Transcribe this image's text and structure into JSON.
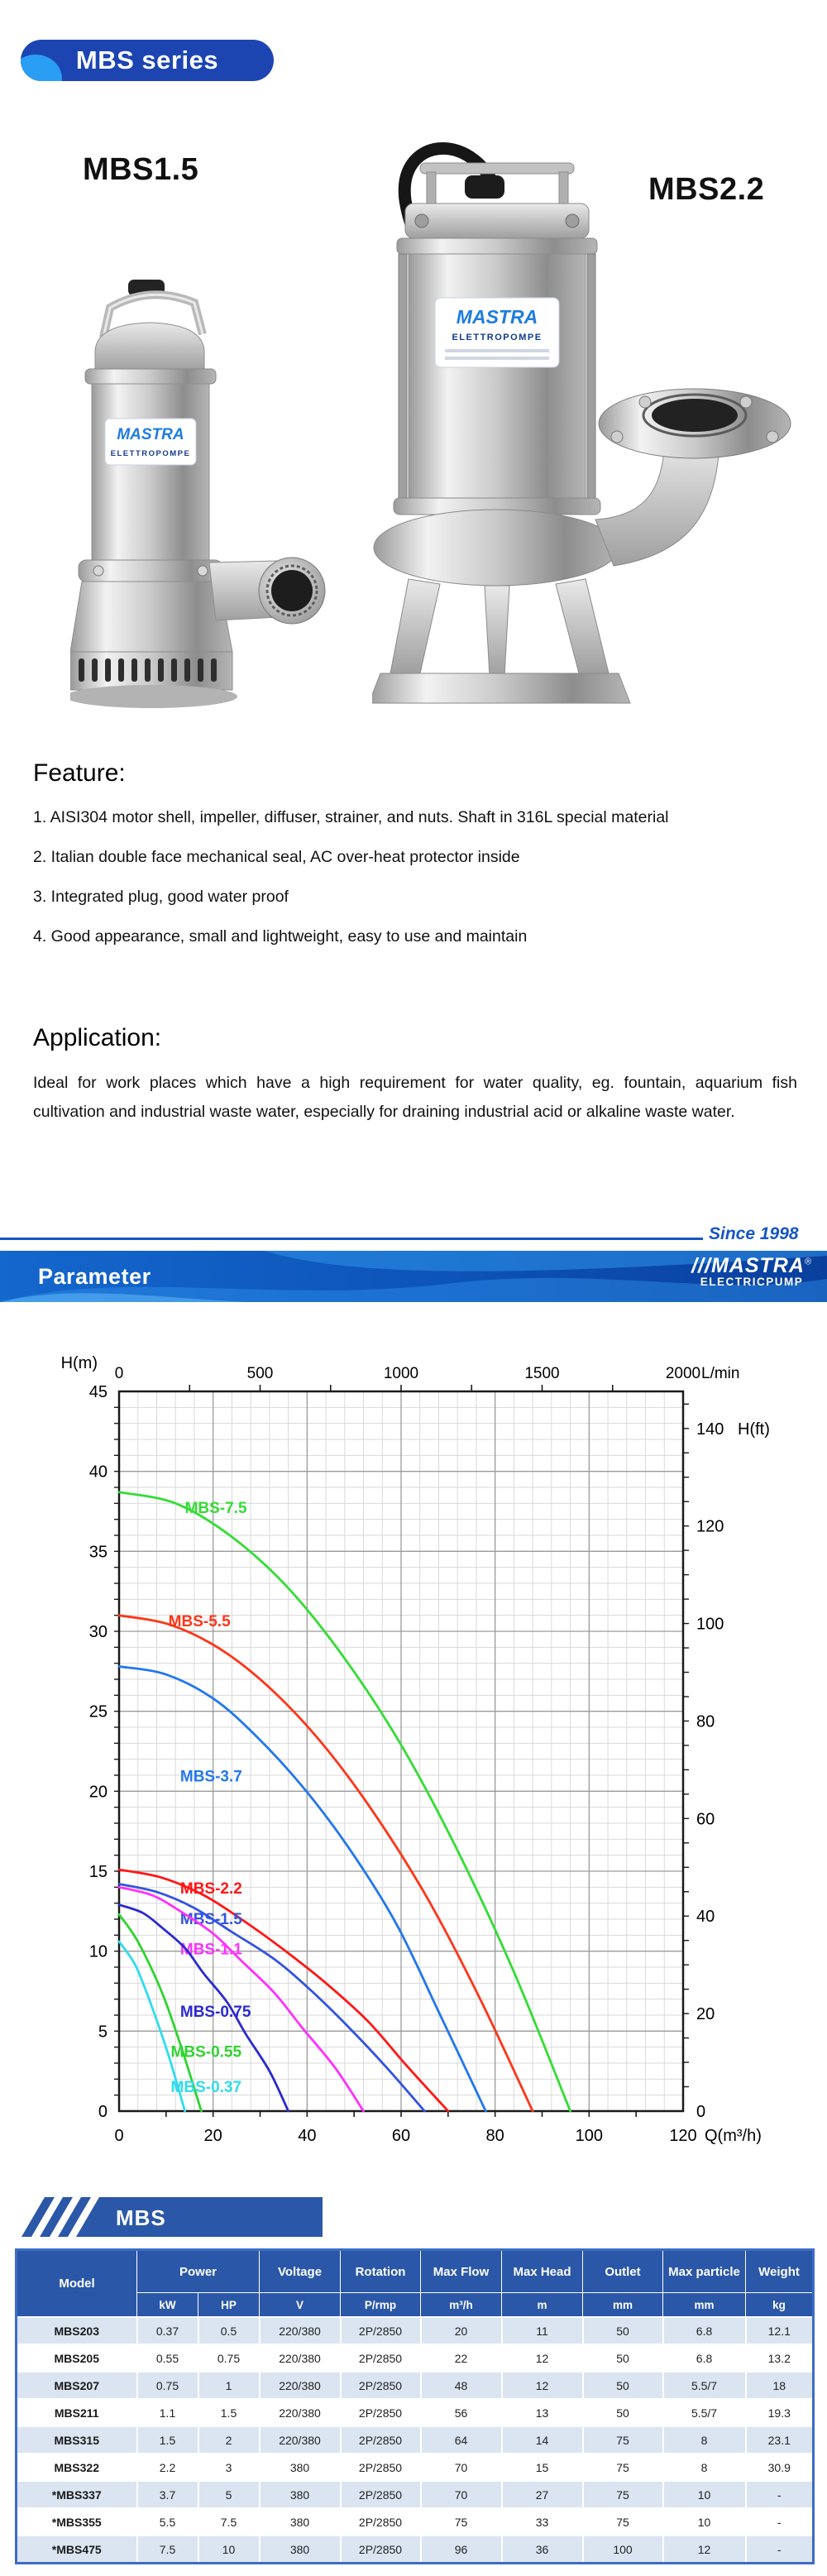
{
  "header_badge": {
    "label": "MBS series",
    "bg": "#1c45b2",
    "accent": "#2a9df4"
  },
  "products": {
    "left_label": "MBS1.5",
    "right_label": "MBS2.2"
  },
  "pump_plate": {
    "brand": "MASTRA",
    "sub": "ELETTROPOMPE"
  },
  "feature": {
    "heading": "Feature:",
    "items": [
      "1. AISI304 motor shell, impeller, diffuser, strainer, and nuts. Shaft in 316L special material",
      "2. Italian double face mechanical seal, AC over-heat protector inside",
      "3. Integrated plug, good water proof",
      "4. Good appearance, small and lightweight, easy to use and maintain"
    ]
  },
  "application": {
    "heading": "Application:",
    "paragraph": "Ideal for work places which have a high requirement for water quality, eg. fountain, aquarium fish cultivation and industrial waste water, especially for draining industrial acid or alkaline waste water."
  },
  "divider": {
    "since": "Since 1998",
    "color": "#1656c4"
  },
  "param_banner": {
    "title": "Parameter",
    "logo_slashes": "///",
    "logo_main": "MASTRA",
    "reg": "®",
    "logo_sub": "ELECTRICPUMP"
  },
  "chart_data": {
    "type": "line",
    "title": "",
    "grid": true,
    "x_axis_top": {
      "label": "L/min",
      "min": 0,
      "max": 2000,
      "ticks": [
        0,
        500,
        1000,
        1500,
        2000
      ]
    },
    "x_axis_bottom": {
      "label": "Q(m³/h)",
      "min": 0,
      "max": 120,
      "ticks": [
        0,
        20,
        40,
        60,
        80,
        100,
        120
      ]
    },
    "y_axis_left": {
      "label": "H(m)",
      "min": 0,
      "max": 45,
      "ticks": [
        0,
        5,
        10,
        15,
        20,
        25,
        30,
        35,
        40,
        45
      ]
    },
    "y_axis_right": {
      "label": "H(ft)",
      "min": 0,
      "max": 147.6,
      "ticks": [
        0,
        20,
        40,
        60,
        80,
        100,
        120,
        140
      ]
    },
    "series": [
      {
        "name": "MBS-7.5",
        "color": "#33dd33",
        "label_pos": [
          14,
          37.4
        ],
        "points": [
          [
            0,
            38.7
          ],
          [
            12,
            38.0
          ],
          [
            24,
            35.9
          ],
          [
            36,
            32.7
          ],
          [
            48,
            28.3
          ],
          [
            60,
            22.9
          ],
          [
            72,
            16.3
          ],
          [
            84,
            8.7
          ],
          [
            96,
            0
          ]
        ]
      },
      {
        "name": "MBS-5.5",
        "color": "#ff3518",
        "label_pos": [
          10.5,
          30.3
        ],
        "points": [
          [
            0,
            31
          ],
          [
            11,
            30.4
          ],
          [
            22,
            28.8
          ],
          [
            33,
            26.2
          ],
          [
            44,
            22.7
          ],
          [
            55,
            18.3
          ],
          [
            66,
            13.1
          ],
          [
            77,
            6.9
          ],
          [
            88,
            0
          ]
        ]
      },
      {
        "name": "MBS-3.7",
        "color": "#2277ee",
        "label_pos": [
          13,
          20.6
        ],
        "points": [
          [
            0,
            27.8
          ],
          [
            10,
            27.3
          ],
          [
            20,
            25.8
          ],
          [
            29,
            23.5
          ],
          [
            39,
            20.3
          ],
          [
            49,
            16.4
          ],
          [
            59,
            11.7
          ],
          [
            68,
            6.2
          ],
          [
            78,
            0
          ]
        ]
      },
      {
        "name": "MBS-2.2",
        "color": "#ff1616",
        "label_pos": [
          13,
          13.6
        ],
        "points": [
          [
            0,
            15.1
          ],
          [
            9,
            14.6
          ],
          [
            18,
            13.5
          ],
          [
            26,
            12.0
          ],
          [
            35,
            10.1
          ],
          [
            44,
            8.0
          ],
          [
            53,
            5.6
          ],
          [
            61,
            2.9
          ],
          [
            70,
            0
          ]
        ]
      },
      {
        "name": "MBS-1.5",
        "color": "#3353e0",
        "label_pos": [
          13,
          11.7
        ],
        "points": [
          [
            0,
            14.2
          ],
          [
            8,
            13.7
          ],
          [
            16,
            12.7
          ],
          [
            24,
            11.2
          ],
          [
            33,
            9.5
          ],
          [
            41,
            7.5
          ],
          [
            49,
            5.2
          ],
          [
            57,
            2.7
          ],
          [
            65,
            0
          ]
        ]
      },
      {
        "name": "MBS-1.1",
        "color": "#ff30ff",
        "label_pos": [
          13,
          9.8
        ],
        "points": [
          [
            0,
            14.0
          ],
          [
            7,
            13.5
          ],
          [
            13,
            12.5
          ],
          [
            20,
            11.1
          ],
          [
            26,
            9.4
          ],
          [
            33,
            7.4
          ],
          [
            39,
            5.2
          ],
          [
            46,
            2.7
          ],
          [
            52,
            0
          ]
        ]
      },
      {
        "name": "MBS-0.75",
        "color": "#2a2ad0",
        "label_pos": [
          13,
          5.9
        ],
        "points": [
          [
            0,
            12.9
          ],
          [
            5,
            12.4
          ],
          [
            9,
            11.5
          ],
          [
            14,
            10.2
          ],
          [
            18,
            8.6
          ],
          [
            23,
            6.8
          ],
          [
            27,
            4.8
          ],
          [
            32,
            2.5
          ],
          [
            36,
            0
          ]
        ]
      },
      {
        "name": "MBS-0.55",
        "color": "#2fd42f",
        "label_pos": [
          11,
          3.4
        ],
        "points": [
          [
            0,
            12.3
          ],
          [
            4,
            10.6
          ],
          [
            9,
            7.5
          ],
          [
            13,
            4.2
          ],
          [
            17.5,
            0
          ]
        ]
      },
      {
        "name": "MBS-0.37",
        "color": "#30dcec",
        "label_pos": [
          11,
          1.2
        ],
        "points": [
          [
            0,
            10.6
          ],
          [
            3.5,
            9.1
          ],
          [
            7,
            6.5
          ],
          [
            10.5,
            3.5
          ],
          [
            14,
            0
          ]
        ]
      }
    ]
  },
  "table_badge": {
    "label": "MBS"
  },
  "table": {
    "header_row1": {
      "model": "Model",
      "power": "Power",
      "voltage": "Voltage",
      "rotation": "Rotation",
      "max_flow": "Max Flow",
      "max_head": "Max Head",
      "outlet": "Outlet",
      "max_particle": "Max particle",
      "weight": "Weight"
    },
    "header_row2": {
      "kw": "kW",
      "hp": "HP",
      "v": "V",
      "prmp": "P/rmp",
      "m3h": "m³/h",
      "m": "m",
      "mm1": "mm",
      "mm2": "mm",
      "kg": "kg"
    },
    "rows": [
      [
        "MBS203",
        "0.37",
        "0.5",
        "220/380",
        "2P/2850",
        "20",
        "11",
        "50",
        "6.8",
        "12.1"
      ],
      [
        "MBS205",
        "0.55",
        "0.75",
        "220/380",
        "2P/2850",
        "22",
        "12",
        "50",
        "6.8",
        "13.2"
      ],
      [
        "MBS207",
        "0.75",
        "1",
        "220/380",
        "2P/2850",
        "48",
        "12",
        "50",
        "5.5/7",
        "18"
      ],
      [
        "MBS211",
        "1.1",
        "1.5",
        "220/380",
        "2P/2850",
        "56",
        "13",
        "50",
        "5.5/7",
        "19.3"
      ],
      [
        "MBS315",
        "1.5",
        "2",
        "220/380",
        "2P/2850",
        "64",
        "14",
        "75",
        "8",
        "23.1"
      ],
      [
        "MBS322",
        "2.2",
        "3",
        "380",
        "2P/2850",
        "70",
        "15",
        "75",
        "8",
        "30.9"
      ],
      [
        "*MBS337",
        "3.7",
        "5",
        "380",
        "2P/2850",
        "70",
        "27",
        "75",
        "10",
        "-"
      ],
      [
        "*MBS355",
        "5.5",
        "7.5",
        "380",
        "2P/2850",
        "75",
        "33",
        "75",
        "10",
        "-"
      ],
      [
        "*MBS475",
        "7.5",
        "10",
        "380",
        "2P/2850",
        "96",
        "36",
        "100",
        "12",
        "-"
      ]
    ]
  }
}
